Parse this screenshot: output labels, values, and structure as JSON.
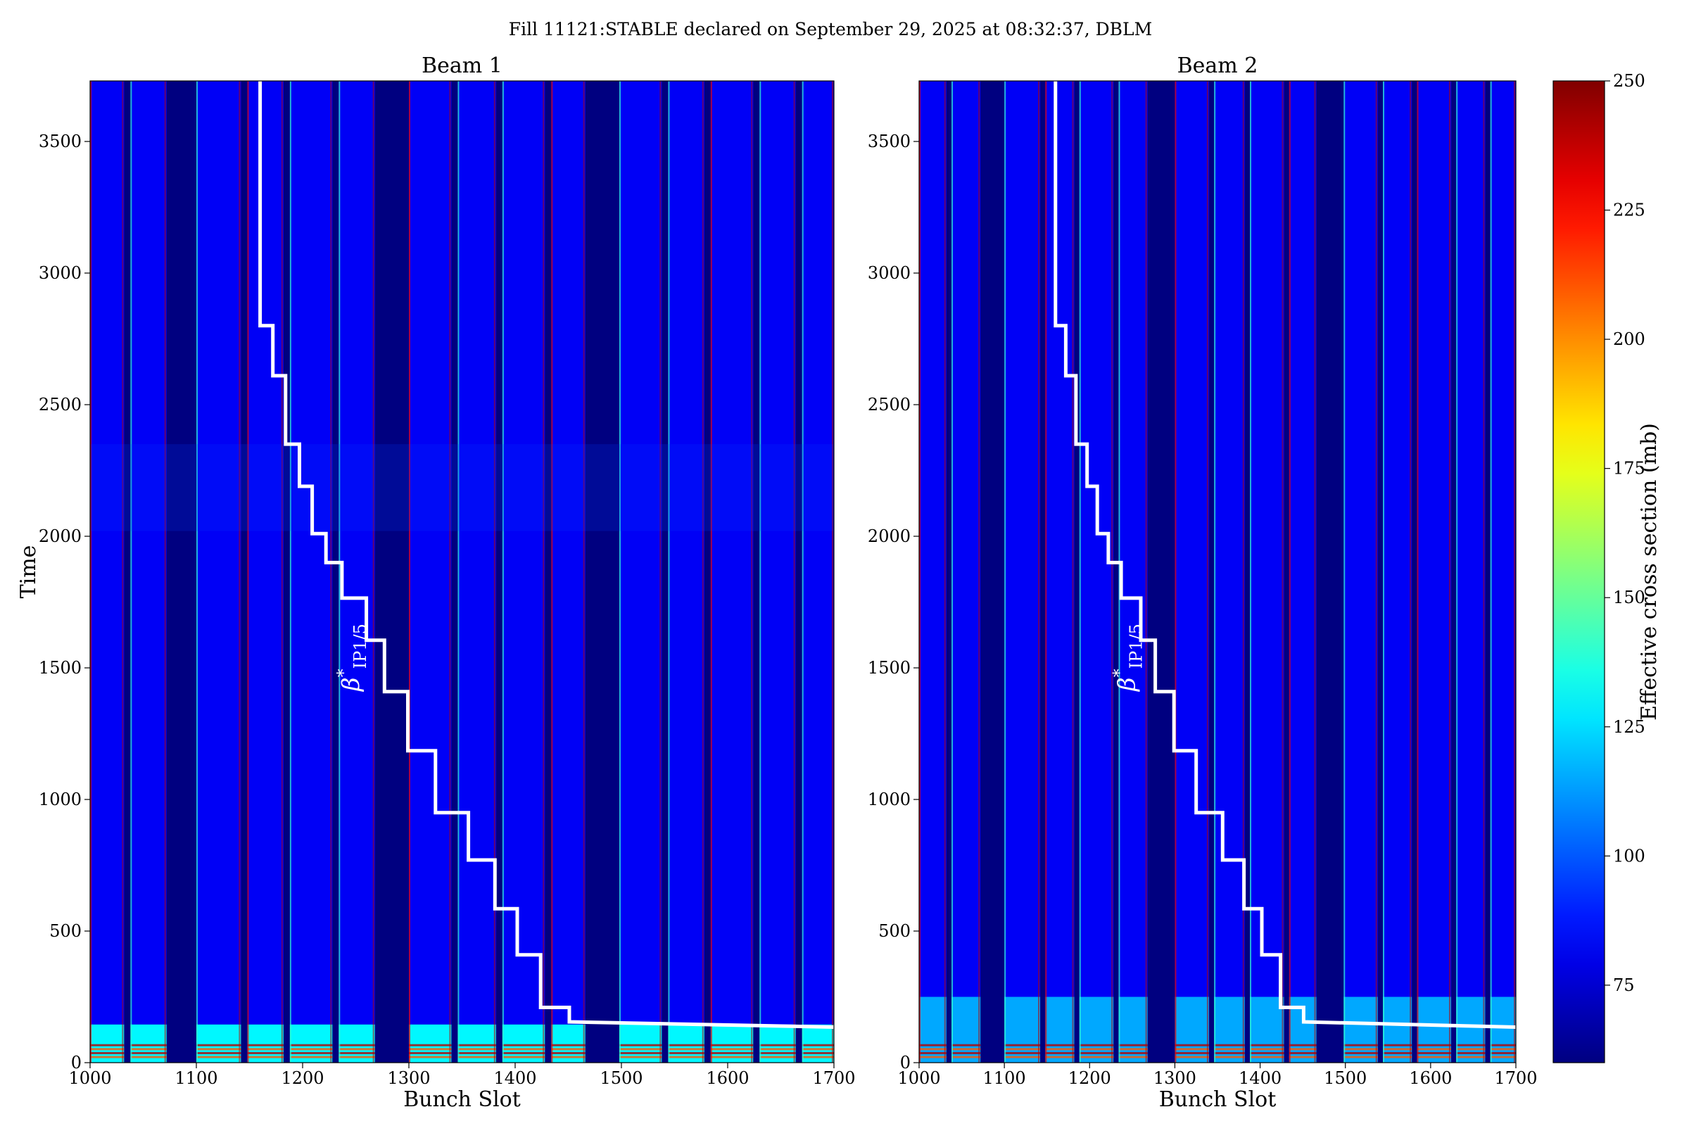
{
  "suptitle": "Fill 11121:STABLE declared on September 29, 2025 at 08:32:37, DBLM",
  "colorbar": {
    "label": "Effective cross section (mb)",
    "range": [
      60,
      250
    ],
    "ticks": [
      75,
      100,
      125,
      150,
      175,
      200,
      225,
      250
    ],
    "colormap": "jet"
  },
  "chart_data": [
    {
      "type": "heatmap",
      "title": "Beam 1",
      "xlabel": "Bunch Slot",
      "ylabel": "Time",
      "xlim": [
        1000,
        1700
      ],
      "ylim": [
        0,
        3730
      ],
      "xticks": [
        1000,
        1100,
        1200,
        1300,
        1400,
        1500,
        1600,
        1700
      ],
      "yticks": [
        0,
        500,
        1000,
        1500,
        2000,
        2500,
        3000,
        3500
      ],
      "filled_trains": [
        [
          1000,
          1032
        ],
        [
          1038,
          1072
        ],
        [
          1100,
          1142
        ],
        [
          1148,
          1182
        ],
        [
          1188,
          1228
        ],
        [
          1234,
          1268
        ],
        [
          1300,
          1340
        ],
        [
          1346,
          1382
        ],
        [
          1388,
          1428
        ],
        [
          1434,
          1466
        ],
        [
          1498,
          1538
        ],
        [
          1544,
          1578
        ],
        [
          1584,
          1624
        ],
        [
          1630,
          1664
        ],
        [
          1670,
          1700
        ]
      ],
      "body_value": 82,
      "early_band": {
        "until": 145,
        "value": 130
      },
      "dim_band": [
        2020,
        2350
      ],
      "beta_star_label": "β*IP1/5",
      "beta_star_path": [
        [
          1160,
          3730
        ],
        [
          1160,
          2800
        ],
        [
          1172,
          2800
        ],
        [
          1172,
          2610
        ],
        [
          1184,
          2610
        ],
        [
          1184,
          2350
        ],
        [
          1197,
          2350
        ],
        [
          1197,
          2190
        ],
        [
          1209,
          2190
        ],
        [
          1209,
          2010
        ],
        [
          1222,
          2010
        ],
        [
          1222,
          1900
        ],
        [
          1237,
          1900
        ],
        [
          1237,
          1765
        ],
        [
          1260,
          1765
        ],
        [
          1260,
          1605
        ],
        [
          1277,
          1605
        ],
        [
          1277,
          1410
        ],
        [
          1299,
          1410
        ],
        [
          1299,
          1185
        ],
        [
          1325,
          1185
        ],
        [
          1325,
          950
        ],
        [
          1356,
          950
        ],
        [
          1356,
          770
        ],
        [
          1381,
          770
        ],
        [
          1381,
          585
        ],
        [
          1402,
          585
        ],
        [
          1402,
          410
        ],
        [
          1424,
          410
        ],
        [
          1424,
          210
        ],
        [
          1451,
          210
        ],
        [
          1451,
          155
        ],
        [
          1700,
          135
        ]
      ]
    },
    {
      "type": "heatmap",
      "title": "Beam 2",
      "xlabel": "Bunch Slot",
      "ylabel": "",
      "xlim": [
        1000,
        1700
      ],
      "ylim": [
        0,
        3730
      ],
      "xticks": [
        1000,
        1100,
        1200,
        1300,
        1400,
        1500,
        1600,
        1700
      ],
      "yticks": [
        0,
        500,
        1000,
        1500,
        2000,
        2500,
        3000,
        3500
      ],
      "filled_trains": [
        [
          1000,
          1032
        ],
        [
          1038,
          1072
        ],
        [
          1100,
          1142
        ],
        [
          1148,
          1182
        ],
        [
          1188,
          1228
        ],
        [
          1234,
          1268
        ],
        [
          1300,
          1340
        ],
        [
          1346,
          1382
        ],
        [
          1388,
          1428
        ],
        [
          1434,
          1466
        ],
        [
          1498,
          1538
        ],
        [
          1544,
          1578
        ],
        [
          1584,
          1624
        ],
        [
          1630,
          1664
        ],
        [
          1670,
          1700
        ]
      ],
      "body_value": 82,
      "early_band": {
        "until": 250,
        "value": 115
      },
      "dim_band": [],
      "beta_star_label": "β*IP1/5",
      "beta_star_path": [
        [
          1160,
          3730
        ],
        [
          1160,
          2800
        ],
        [
          1172,
          2800
        ],
        [
          1172,
          2610
        ],
        [
          1184,
          2610
        ],
        [
          1184,
          2350
        ],
        [
          1197,
          2350
        ],
        [
          1197,
          2190
        ],
        [
          1209,
          2190
        ],
        [
          1209,
          2010
        ],
        [
          1222,
          2010
        ],
        [
          1222,
          1900
        ],
        [
          1237,
          1900
        ],
        [
          1237,
          1765
        ],
        [
          1260,
          1765
        ],
        [
          1260,
          1605
        ],
        [
          1277,
          1605
        ],
        [
          1277,
          1410
        ],
        [
          1299,
          1410
        ],
        [
          1299,
          1185
        ],
        [
          1325,
          1185
        ],
        [
          1325,
          950
        ],
        [
          1356,
          950
        ],
        [
          1356,
          770
        ],
        [
          1381,
          770
        ],
        [
          1381,
          585
        ],
        [
          1402,
          585
        ],
        [
          1402,
          410
        ],
        [
          1424,
          410
        ],
        [
          1424,
          210
        ],
        [
          1451,
          210
        ],
        [
          1451,
          155
        ],
        [
          1700,
          135
        ]
      ]
    }
  ]
}
